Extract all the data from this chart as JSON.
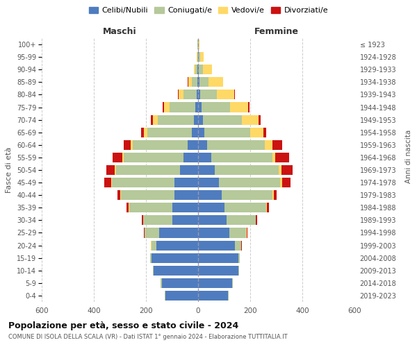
{
  "age_groups": [
    "0-4",
    "5-9",
    "10-14",
    "15-19",
    "20-24",
    "25-29",
    "30-34",
    "35-39",
    "40-44",
    "45-49",
    "50-54",
    "55-59",
    "60-64",
    "65-69",
    "70-74",
    "75-79",
    "80-84",
    "85-89",
    "90-94",
    "95-99",
    "100+"
  ],
  "birth_years": [
    "2019-2023",
    "2014-2018",
    "2009-2013",
    "2004-2008",
    "1999-2003",
    "1994-1998",
    "1989-1993",
    "1984-1988",
    "1979-1983",
    "1974-1978",
    "1969-1973",
    "1964-1968",
    "1959-1963",
    "1954-1958",
    "1949-1953",
    "1944-1948",
    "1939-1943",
    "1934-1938",
    "1929-1933",
    "1924-1928",
    "≤ 1923"
  ],
  "males": {
    "celibi": [
      125,
      140,
      170,
      180,
      160,
      150,
      100,
      100,
      90,
      90,
      70,
      55,
      40,
      25,
      15,
      10,
      5,
      3,
      2,
      1,
      1
    ],
    "coniugati": [
      3,
      3,
      3,
      5,
      20,
      55,
      110,
      165,
      205,
      240,
      245,
      230,
      210,
      170,
      140,
      100,
      50,
      20,
      8,
      3,
      1
    ],
    "vedovi": [
      0,
      0,
      0,
      0,
      1,
      1,
      2,
      2,
      3,
      3,
      5,
      5,
      8,
      12,
      18,
      22,
      20,
      15,
      5,
      2,
      0
    ],
    "divorziati": [
      0,
      0,
      0,
      0,
      1,
      2,
      4,
      8,
      12,
      28,
      32,
      38,
      28,
      12,
      8,
      5,
      2,
      1,
      0,
      0,
      0
    ]
  },
  "females": {
    "nubili": [
      115,
      130,
      155,
      155,
      140,
      120,
      110,
      100,
      90,
      80,
      65,
      50,
      35,
      25,
      18,
      12,
      8,
      5,
      3,
      2,
      1
    ],
    "coniugate": [
      3,
      3,
      3,
      5,
      25,
      65,
      110,
      160,
      195,
      235,
      245,
      235,
      220,
      175,
      150,
      110,
      65,
      35,
      15,
      5,
      2
    ],
    "vedove": [
      0,
      0,
      0,
      0,
      1,
      1,
      2,
      3,
      5,
      8,
      10,
      12,
      30,
      50,
      65,
      70,
      65,
      55,
      35,
      15,
      1
    ],
    "divorziate": [
      0,
      0,
      0,
      0,
      1,
      2,
      4,
      8,
      12,
      32,
      42,
      52,
      38,
      12,
      8,
      5,
      2,
      1,
      0,
      0,
      0
    ]
  },
  "colors": {
    "celibi": "#4f7cbe",
    "coniugati": "#b5c99a",
    "vedovi": "#ffd966",
    "divorziati": "#cc1111"
  },
  "xlim": 600,
  "title": "Popolazione per età, sesso e stato civile - 2024",
  "subtitle": "COMUNE DI ISOLA DELLA SCALA (VR) - Dati ISTAT 1° gennaio 2024 - Elaborazione TUTTITALIA.IT",
  "legend_labels": [
    "Celibi/Nubili",
    "Coniugati/e",
    "Vedovi/e",
    "Divorziati/e"
  ],
  "xlabel_maschi": "Maschi",
  "xlabel_femmine": "Femmine",
  "ylabel_left": "Fasce di età",
  "ylabel_right": "Anni di nascita",
  "background_color": "#ffffff"
}
